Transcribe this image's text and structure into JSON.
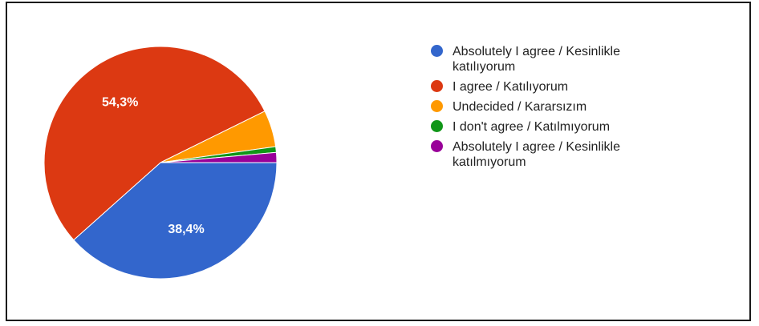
{
  "chart_data": {
    "type": "pie",
    "categories": [
      "Absolutely I agree / Kesinlikle katılıyorum",
      "I agree / Katılıyorum",
      "Undecided / Kararsızım",
      "I don't agree / Katılmıyorum",
      "Absolutely I agree / Kesinlikle katılmıyorum"
    ],
    "values": [
      38.4,
      54.3,
      5.1,
      0.8,
      1.4
    ],
    "data_labels": [
      "38,4%",
      "54,3%",
      "",
      "",
      ""
    ],
    "colors": [
      "#3366cc",
      "#dc3912",
      "#ff9900",
      "#109618",
      "#990099"
    ],
    "title": "",
    "legend_position": "right"
  }
}
